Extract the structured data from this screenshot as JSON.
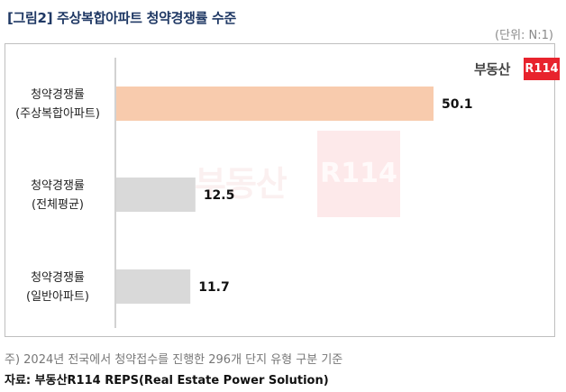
{
  "header": {
    "title": "[그림2] 주상복합아파트 청약경쟁률 수준",
    "unit": "(단위: N:1)"
  },
  "logo": {
    "text": "부동산",
    "badge": "R114"
  },
  "colors": {
    "highlight_bar": "#f8cbad",
    "normal_bar": "#d9d9d9",
    "axis": "#a6a6a6"
  },
  "chart_data": {
    "type": "bar",
    "orientation": "horizontal",
    "categories": [
      [
        "청약경쟁률",
        "(주상복합아파트)"
      ],
      [
        "청약경쟁률",
        "(전체평균)"
      ],
      [
        "청약경쟁률",
        "(일반아파트)"
      ]
    ],
    "values": [
      50.1,
      12.5,
      11.7
    ],
    "value_labels": [
      "50.1",
      "12.5",
      "11.7"
    ],
    "xlim": [
      0,
      55
    ],
    "grid": false,
    "legend": "none"
  },
  "footer": {
    "note": "주) 2024년 전국에서 청약접수를 진행한 296개 단지 유형 구분 기준",
    "source": "자료: 부동산R114 REPS(Real Estate Power Solution)"
  }
}
